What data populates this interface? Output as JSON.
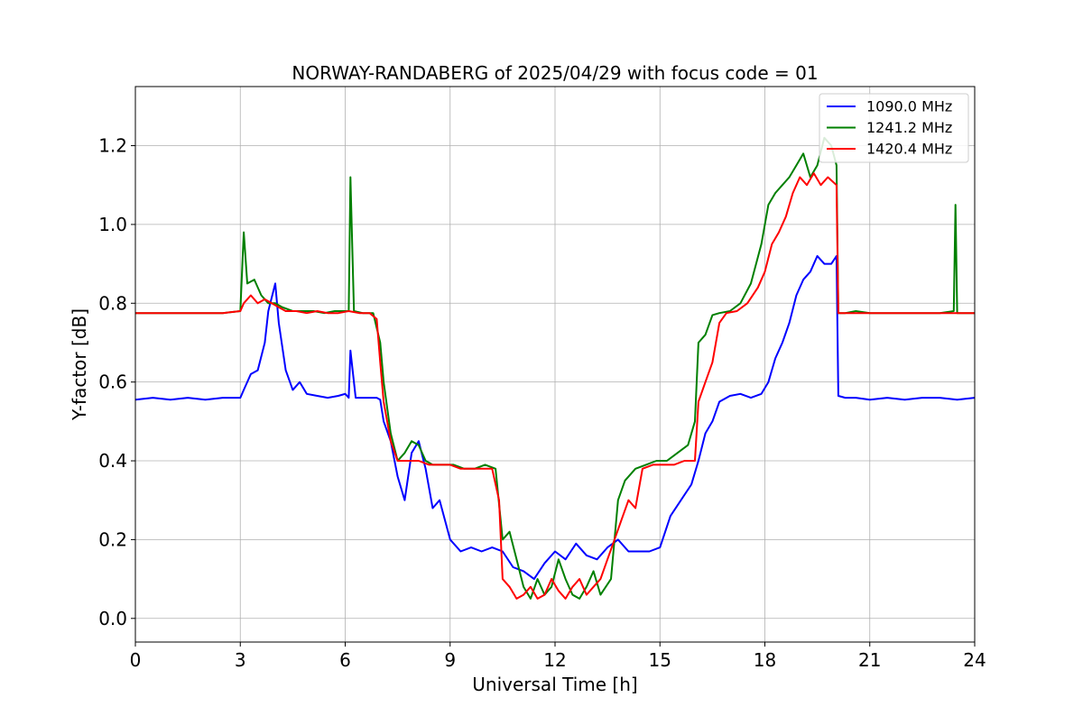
{
  "chart_data": {
    "type": "line",
    "title": "NORWAY-RANDABERG of 2025/04/29 with focus code = 01",
    "xlabel": "Universal Time [h]",
    "ylabel": "Y-factor [dB]",
    "xlim": [
      0,
      24
    ],
    "ylim": [
      -0.06,
      1.35
    ],
    "xticks": [
      0,
      3,
      6,
      9,
      12,
      15,
      18,
      21,
      24
    ],
    "xtick_labels": [
      "0",
      "3",
      "6",
      "9",
      "12",
      "15",
      "18",
      "21",
      "24"
    ],
    "yticks": [
      0.0,
      0.2,
      0.4,
      0.6,
      0.8,
      1.0,
      1.2
    ],
    "ytick_labels": [
      "0.0",
      "0.2",
      "0.4",
      "0.6",
      "0.8",
      "1.0",
      "1.2"
    ],
    "grid": true,
    "legend_position": "top-right",
    "series": [
      {
        "name": "1090.0 MHz",
        "color": "#0000ff",
        "x": [
          0,
          0.5,
          1,
          1.5,
          2,
          2.5,
          3,
          3.1,
          3.3,
          3.5,
          3.7,
          3.8,
          4.0,
          4.1,
          4.3,
          4.5,
          4.7,
          4.9,
          5.2,
          5.5,
          5.8,
          6.0,
          6.1,
          6.15,
          6.3,
          6.6,
          6.9,
          7.0,
          7.1,
          7.3,
          7.5,
          7.7,
          7.9,
          8.1,
          8.3,
          8.5,
          8.7,
          9.0,
          9.3,
          9.6,
          9.9,
          10.2,
          10.5,
          10.8,
          11.1,
          11.4,
          11.7,
          12.0,
          12.3,
          12.6,
          12.9,
          13.2,
          13.5,
          13.8,
          14.1,
          14.4,
          14.7,
          15.0,
          15.3,
          15.6,
          15.9,
          16.1,
          16.3,
          16.5,
          16.7,
          17.0,
          17.3,
          17.6,
          17.9,
          18.1,
          18.3,
          18.5,
          18.7,
          18.9,
          19.1,
          19.3,
          19.5,
          19.7,
          19.9,
          20.05,
          20.1,
          20.3,
          20.6,
          21.0,
          21.5,
          22.0,
          22.5,
          23.0,
          23.5,
          24.0
        ],
        "y": [
          0.555,
          0.56,
          0.555,
          0.56,
          0.555,
          0.56,
          0.56,
          0.58,
          0.62,
          0.63,
          0.7,
          0.78,
          0.85,
          0.75,
          0.63,
          0.58,
          0.6,
          0.57,
          0.565,
          0.56,
          0.565,
          0.57,
          0.56,
          0.68,
          0.56,
          0.56,
          0.56,
          0.555,
          0.5,
          0.45,
          0.36,
          0.3,
          0.42,
          0.45,
          0.38,
          0.28,
          0.3,
          0.2,
          0.17,
          0.18,
          0.17,
          0.18,
          0.17,
          0.13,
          0.12,
          0.1,
          0.14,
          0.17,
          0.15,
          0.19,
          0.16,
          0.15,
          0.18,
          0.2,
          0.17,
          0.17,
          0.17,
          0.18,
          0.26,
          0.3,
          0.34,
          0.4,
          0.47,
          0.5,
          0.55,
          0.565,
          0.57,
          0.56,
          0.57,
          0.6,
          0.66,
          0.7,
          0.75,
          0.82,
          0.86,
          0.88,
          0.92,
          0.9,
          0.9,
          0.92,
          0.565,
          0.56,
          0.56,
          0.555,
          0.56,
          0.555,
          0.56,
          0.56,
          0.555,
          0.56
        ]
      },
      {
        "name": "1241.2 MHz",
        "color": "#008000",
        "x": [
          0,
          0.5,
          1,
          1.5,
          2,
          2.5,
          3,
          3.1,
          3.2,
          3.4,
          3.6,
          3.8,
          4.0,
          4.2,
          4.5,
          4.8,
          5.1,
          5.4,
          5.7,
          6.0,
          6.1,
          6.15,
          6.25,
          6.5,
          6.8,
          7.0,
          7.1,
          7.3,
          7.5,
          7.7,
          7.9,
          8.1,
          8.3,
          8.5,
          8.8,
          9.1,
          9.4,
          9.7,
          10.0,
          10.3,
          10.5,
          10.7,
          10.9,
          11.1,
          11.3,
          11.5,
          11.7,
          11.9,
          12.1,
          12.3,
          12.5,
          12.7,
          12.9,
          13.1,
          13.3,
          13.6,
          13.8,
          14.0,
          14.3,
          14.6,
          14.9,
          15.2,
          15.5,
          15.8,
          16.0,
          16.1,
          16.3,
          16.5,
          16.7,
          17.0,
          17.3,
          17.6,
          17.9,
          18.1,
          18.3,
          18.5,
          18.7,
          18.9,
          19.1,
          19.3,
          19.5,
          19.7,
          19.9,
          20.05,
          20.1,
          20.3,
          20.6,
          21.0,
          21.5,
          22.0,
          22.5,
          23.0,
          23.4,
          23.45,
          23.5,
          24.0
        ],
        "y": [
          0.775,
          0.775,
          0.775,
          0.775,
          0.775,
          0.775,
          0.78,
          0.98,
          0.85,
          0.86,
          0.82,
          0.8,
          0.8,
          0.79,
          0.78,
          0.78,
          0.78,
          0.775,
          0.78,
          0.78,
          0.78,
          1.12,
          0.78,
          0.775,
          0.775,
          0.7,
          0.6,
          0.47,
          0.4,
          0.42,
          0.45,
          0.44,
          0.4,
          0.39,
          0.39,
          0.39,
          0.38,
          0.38,
          0.39,
          0.38,
          0.2,
          0.22,
          0.15,
          0.08,
          0.05,
          0.1,
          0.06,
          0.08,
          0.15,
          0.1,
          0.06,
          0.05,
          0.08,
          0.12,
          0.06,
          0.1,
          0.3,
          0.35,
          0.38,
          0.39,
          0.4,
          0.4,
          0.42,
          0.44,
          0.5,
          0.7,
          0.72,
          0.77,
          0.775,
          0.78,
          0.8,
          0.85,
          0.95,
          1.05,
          1.08,
          1.1,
          1.12,
          1.15,
          1.18,
          1.12,
          1.15,
          1.22,
          1.2,
          1.15,
          0.775,
          0.775,
          0.78,
          0.775,
          0.775,
          0.775,
          0.775,
          0.775,
          0.78,
          1.05,
          0.775,
          0.775
        ]
      },
      {
        "name": "1420.4 MHz",
        "color": "#ff0000",
        "x": [
          0,
          0.5,
          1,
          1.5,
          2,
          2.5,
          3,
          3.1,
          3.3,
          3.5,
          3.7,
          3.9,
          4.1,
          4.3,
          4.6,
          4.9,
          5.2,
          5.5,
          5.8,
          6.1,
          6.4,
          6.7,
          6.9,
          7.0,
          7.1,
          7.3,
          7.5,
          7.8,
          8.1,
          8.4,
          8.7,
          9.0,
          9.3,
          9.6,
          9.9,
          10.2,
          10.4,
          10.5,
          10.7,
          10.9,
          11.1,
          11.3,
          11.5,
          11.7,
          11.9,
          12.1,
          12.3,
          12.5,
          12.7,
          12.9,
          13.1,
          13.3,
          13.5,
          13.7,
          13.9,
          14.1,
          14.3,
          14.5,
          14.8,
          15.1,
          15.4,
          15.7,
          15.9,
          16.0,
          16.1,
          16.3,
          16.5,
          16.7,
          16.9,
          17.2,
          17.5,
          17.8,
          18.0,
          18.2,
          18.4,
          18.6,
          18.8,
          19.0,
          19.2,
          19.4,
          19.6,
          19.8,
          20.05,
          20.1,
          20.3,
          20.6,
          21.0,
          21.5,
          22.0,
          22.5,
          23.0,
          23.5,
          24.0
        ],
        "y": [
          0.775,
          0.775,
          0.775,
          0.775,
          0.775,
          0.775,
          0.78,
          0.8,
          0.82,
          0.8,
          0.81,
          0.8,
          0.79,
          0.78,
          0.78,
          0.775,
          0.78,
          0.775,
          0.775,
          0.78,
          0.775,
          0.775,
          0.76,
          0.65,
          0.55,
          0.45,
          0.4,
          0.4,
          0.4,
          0.39,
          0.39,
          0.39,
          0.38,
          0.38,
          0.38,
          0.38,
          0.3,
          0.1,
          0.08,
          0.05,
          0.06,
          0.08,
          0.05,
          0.06,
          0.1,
          0.07,
          0.05,
          0.08,
          0.1,
          0.06,
          0.08,
          0.1,
          0.15,
          0.2,
          0.25,
          0.3,
          0.28,
          0.38,
          0.39,
          0.39,
          0.39,
          0.4,
          0.4,
          0.4,
          0.55,
          0.6,
          0.65,
          0.75,
          0.775,
          0.78,
          0.8,
          0.84,
          0.88,
          0.95,
          0.98,
          1.02,
          1.08,
          1.12,
          1.1,
          1.13,
          1.1,
          1.12,
          1.1,
          0.775,
          0.775,
          0.775,
          0.775,
          0.775,
          0.775,
          0.775,
          0.775,
          0.775,
          0.775
        ]
      }
    ]
  }
}
